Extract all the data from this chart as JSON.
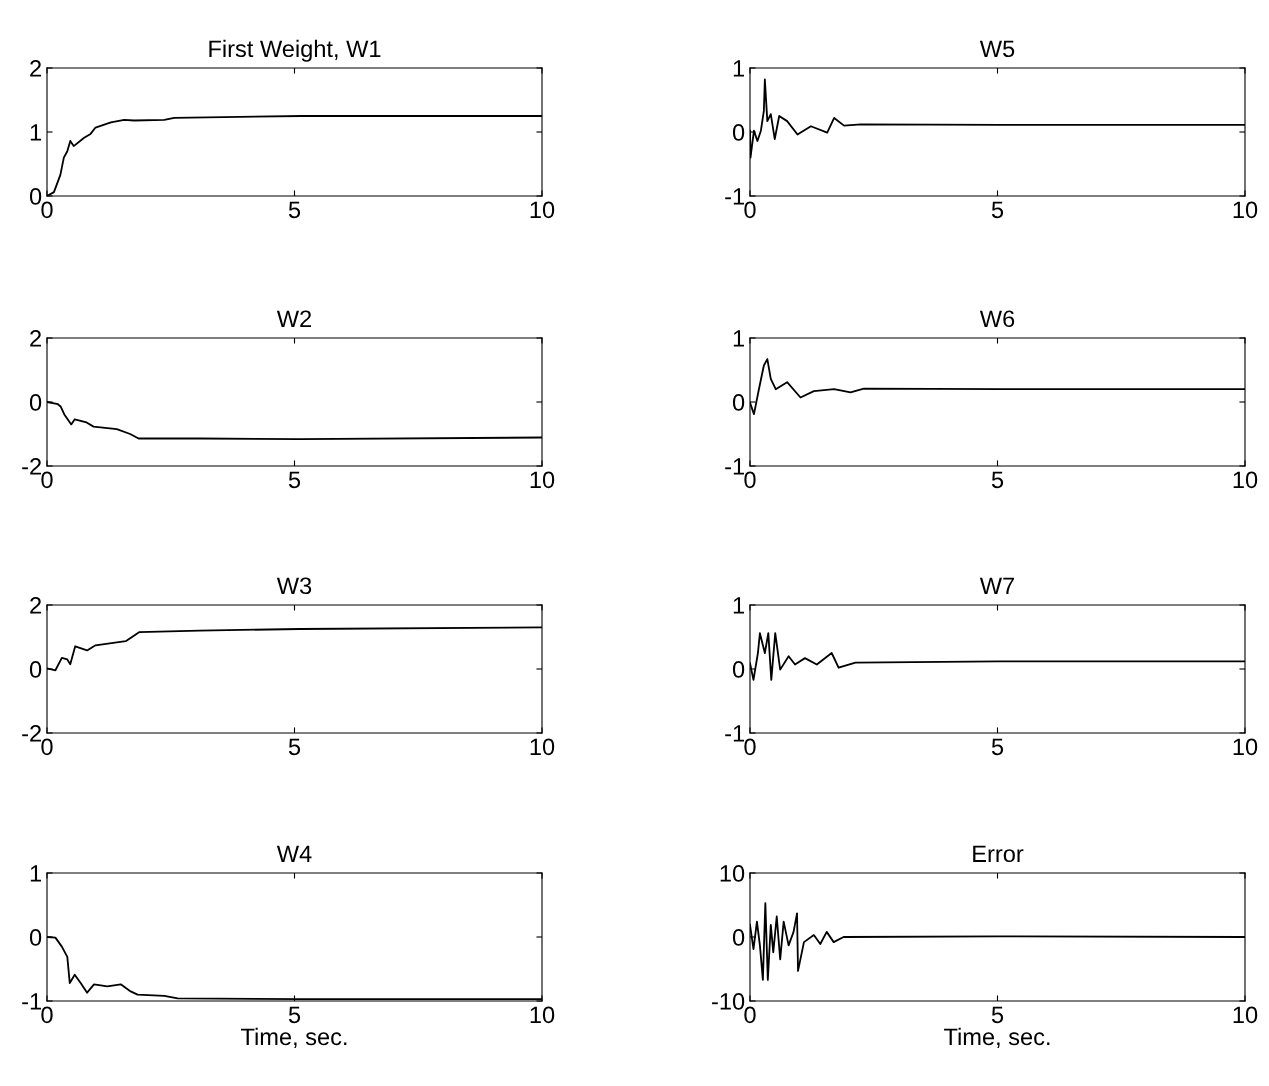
{
  "chart_data": [
    {
      "type": "line",
      "title": "First Weight, W1",
      "color": "#000000",
      "xlim": [
        0,
        10
      ],
      "xticks": [
        0,
        5,
        10
      ],
      "ylim": [
        0,
        2
      ],
      "yticks": [
        0,
        1,
        2
      ],
      "x": [
        0,
        0.14,
        0.27,
        0.34,
        0.41,
        0.47,
        0.54,
        0.75,
        0.88,
        0.98,
        1.29,
        1.56,
        1.76,
        2.37,
        2.57,
        5.15,
        10
      ],
      "values": [
        0,
        0.06,
        0.33,
        0.6,
        0.7,
        0.86,
        0.78,
        0.91,
        0.97,
        1.07,
        1.15,
        1.19,
        1.18,
        1.19,
        1.22,
        1.25,
        1.25
      ]
    },
    {
      "type": "line",
      "title": "W5",
      "color": "#000000",
      "xlim": [
        0,
        10
      ],
      "xticks": [
        0,
        5,
        10
      ],
      "ylim": [
        -1,
        1
      ],
      "yticks": [
        -1,
        0,
        1
      ],
      "x": [
        0,
        0.01,
        0.08,
        0.15,
        0.22,
        0.28,
        0.3,
        0.35,
        0.42,
        0.5,
        0.59,
        0.75,
        0.96,
        1.23,
        1.56,
        1.7,
        1.9,
        2.24,
        5.07,
        10
      ],
      "values": [
        0.02,
        -0.4,
        0.02,
        -0.14,
        0.02,
        0.33,
        0.82,
        0.17,
        0.28,
        -0.11,
        0.25,
        0.17,
        -0.04,
        0.09,
        -0.01,
        0.22,
        0.1,
        0.12,
        0.11,
        0.11
      ]
    },
    {
      "type": "line",
      "title": "W2",
      "color": "#000000",
      "xlim": [
        0,
        10
      ],
      "xticks": [
        0,
        5,
        10
      ],
      "ylim": [
        -2,
        2
      ],
      "yticks": [
        -2,
        0,
        2
      ],
      "x": [
        0,
        0.22,
        0.28,
        0.35,
        0.49,
        0.56,
        0.8,
        0.94,
        1.41,
        1.68,
        1.85,
        3.1,
        5.1,
        10
      ],
      "values": [
        0,
        -0.07,
        -0.15,
        -0.39,
        -0.7,
        -0.54,
        -0.64,
        -0.77,
        -0.85,
        -1.0,
        -1.14,
        -1.14,
        -1.16,
        -1.11
      ]
    },
    {
      "type": "line",
      "title": "W6",
      "color": "#000000",
      "xlim": [
        0,
        10
      ],
      "xticks": [
        0,
        5,
        10
      ],
      "ylim": [
        -1,
        1
      ],
      "yticks": [
        -1,
        0,
        1
      ],
      "x": [
        0,
        0.08,
        0.18,
        0.28,
        0.35,
        0.42,
        0.52,
        0.75,
        1.02,
        1.29,
        1.7,
        2.03,
        2.3,
        5.07,
        10
      ],
      "values": [
        -0.01,
        -0.19,
        0.2,
        0.57,
        0.67,
        0.36,
        0.2,
        0.31,
        0.07,
        0.17,
        0.2,
        0.15,
        0.21,
        0.2,
        0.2
      ]
    },
    {
      "type": "line",
      "title": "W3",
      "color": "#000000",
      "xlim": [
        0,
        10
      ],
      "xticks": [
        0,
        5,
        10
      ],
      "ylim": [
        -2,
        2
      ],
      "yticks": [
        -2,
        0,
        2
      ],
      "x": [
        0,
        0.17,
        0.3,
        0.41,
        0.47,
        0.57,
        0.81,
        0.98,
        1.59,
        1.86,
        3.08,
        5.1,
        10
      ],
      "values": [
        0.02,
        -0.04,
        0.35,
        0.3,
        0.15,
        0.71,
        0.58,
        0.74,
        0.87,
        1.15,
        1.2,
        1.25,
        1.3
      ]
    },
    {
      "type": "line",
      "title": "W7",
      "color": "#000000",
      "xlim": [
        0,
        10
      ],
      "xticks": [
        0,
        5,
        10
      ],
      "ylim": [
        -1,
        1
      ],
      "yticks": [
        -1,
        0,
        1
      ],
      "x": [
        0,
        0.07,
        0.16,
        0.2,
        0.3,
        0.37,
        0.43,
        0.51,
        0.61,
        0.78,
        0.91,
        1.11,
        1.35,
        1.65,
        1.79,
        2.13,
        5.03,
        10
      ],
      "values": [
        0.09,
        -0.17,
        0.25,
        0.56,
        0.25,
        0.56,
        -0.17,
        0.56,
        -0.01,
        0.2,
        0.07,
        0.17,
        0.07,
        0.25,
        0.02,
        0.1,
        0.12,
        0.12
      ]
    },
    {
      "type": "line",
      "title": "W4",
      "xlabel": "Time, sec.",
      "color": "#000000",
      "xlim": [
        0,
        10
      ],
      "xticks": [
        0,
        5,
        10
      ],
      "ylim": [
        -1,
        1
      ],
      "yticks": [
        -1,
        0,
        1
      ],
      "x": [
        0,
        0.17,
        0.3,
        0.41,
        0.46,
        0.56,
        0.68,
        0.81,
        0.95,
        1.22,
        1.49,
        1.69,
        1.83,
        2.37,
        2.64,
        5.1,
        10
      ],
      "values": [
        0,
        -0.01,
        -0.15,
        -0.31,
        -0.72,
        -0.59,
        -0.72,
        -0.87,
        -0.74,
        -0.77,
        -0.74,
        -0.85,
        -0.9,
        -0.92,
        -0.96,
        -0.97,
        -0.97
      ]
    },
    {
      "type": "line",
      "title": "Error",
      "xlabel": "Time, sec.",
      "color": "#000000",
      "xlim": [
        0,
        10
      ],
      "xticks": [
        0,
        5,
        10
      ],
      "ylim": [
        -10,
        10
      ],
      "yticks": [
        -10,
        0,
        10
      ],
      "x": [
        0,
        0.07,
        0.14,
        0.2,
        0.26,
        0.31,
        0.36,
        0.42,
        0.47,
        0.54,
        0.61,
        0.68,
        0.78,
        0.88,
        0.95,
        0.97,
        1.09,
        1.29,
        1.42,
        1.55,
        1.69,
        1.89,
        4.99,
        10
      ],
      "values": [
        1.9,
        -1.9,
        2.4,
        -1.3,
        -6.7,
        5.3,
        -6.7,
        1.9,
        -2.4,
        3.2,
        -3.5,
        2.4,
        -1.3,
        0.8,
        3.7,
        -5.3,
        -0.8,
        0.3,
        -1.1,
        0.8,
        -0.8,
        0,
        0.1,
        0
      ]
    }
  ]
}
